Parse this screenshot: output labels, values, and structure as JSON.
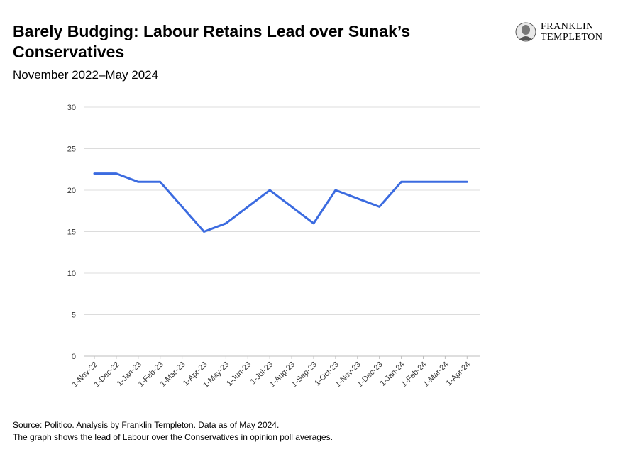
{
  "header": {
    "title": "Barely Budging: Labour Retains Lead over Sunak’s Conservatives",
    "subtitle": "November 2022–May 2024"
  },
  "logo": {
    "line1": "FRANKLIN",
    "line2": "TEMPLETON"
  },
  "footer": {
    "source": "Source: Politico. Analysis by Franklin Templeton. Data as of May 2024.",
    "note": "The graph shows the lead of Labour over the Conservatives in opinion poll averages."
  },
  "chart_data": {
    "type": "line",
    "title": "",
    "xlabel": "",
    "ylabel": "",
    "ylim": [
      0,
      30
    ],
    "yticks": [
      0,
      5,
      10,
      15,
      20,
      25,
      30
    ],
    "grid": true,
    "legend": "none",
    "categories": [
      "1-Nov-22",
      "1-Dec-22",
      "1-Jan-23",
      "1-Feb-23",
      "1-Mar-23",
      "1-Apr-23",
      "1-May-23",
      "1-Jun-23",
      "1-Jul-23",
      "1-Aug-23",
      "1-Sep-23",
      "1-Oct-23",
      "1-Nov-23",
      "1-Dec-23",
      "1-Jan-24",
      "1-Feb-24",
      "1-Mar-24",
      "1-Apr-24"
    ],
    "series": [
      {
        "values": [
          22,
          22,
          21,
          21,
          18,
          15,
          16,
          18,
          20,
          18,
          16,
          20,
          19,
          18,
          21,
          21,
          21,
          21
        ],
        "color": "#3b6be0"
      }
    ]
  }
}
